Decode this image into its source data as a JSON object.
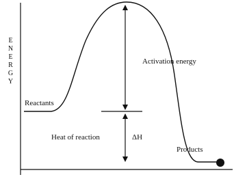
{
  "axis": {
    "label": "ENERGY"
  },
  "labels": {
    "reactants": "Reactants",
    "activation_energy": "Activation energy",
    "heat_of_reaction": "Heat of reaction",
    "delta_h": "ΔH",
    "products": "Products"
  }
}
